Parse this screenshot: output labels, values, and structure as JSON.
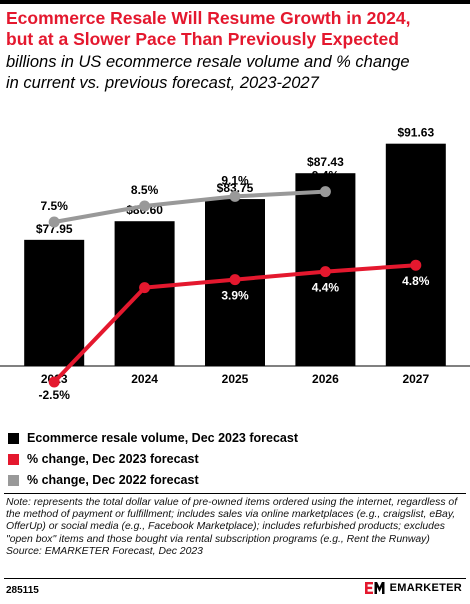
{
  "header": {
    "title": "Ecommerce Resale Will Resume Growth in 2024,\nbut at a Slower Pace Than Previously Expected",
    "subtitle": "billions in US ecommerce resale volume and % change\nin current vs. previous forecast, 2023-2027"
  },
  "chart_data": {
    "type": "bar",
    "categories": [
      "2023",
      "2024",
      "2025",
      "2026",
      "2027"
    ],
    "bars": {
      "name": "Ecommerce resale volume, Dec 2023 forecast",
      "values": [
        77.95,
        80.6,
        83.75,
        87.43,
        91.63
      ],
      "labels": [
        "$77.95",
        "$80.60",
        "$83.75",
        "$87.43",
        "$91.63"
      ],
      "color": "#000000"
    },
    "lines": [
      {
        "name": "% change, Dec 2023 forecast",
        "values": [
          -2.5,
          3.4,
          3.9,
          4.4,
          4.8
        ],
        "labels": [
          "-2.5%",
          "3.4%",
          "3.9%",
          "4.4%",
          "4.8%"
        ],
        "color": "#e4182e"
      },
      {
        "name": "% change, Dec 2022 forecast",
        "values": [
          7.5,
          8.5,
          9.1,
          9.4
        ],
        "labels": [
          "7.5%",
          "8.5%",
          "9.1%",
          "9.4%"
        ],
        "color": "#999999"
      }
    ],
    "legend_position": "bottom"
  },
  "note": "Note: represents the total dollar value of pre-owned items ordered using the internet, regardless of the method of payment or fulfillment; includes sales via online marketplaces (e.g., craigslist, eBay, OfferUp) or social media (e.g., Facebook Marketplace); includes refurbished products; excludes \"open box\" items and those bought via rental subscription programs (e.g., Rent the Runway)",
  "source": "Source: EMARKETER Forecast, Dec 2023",
  "footer": {
    "chart_id": "285115",
    "brand": "EMARKETER"
  }
}
